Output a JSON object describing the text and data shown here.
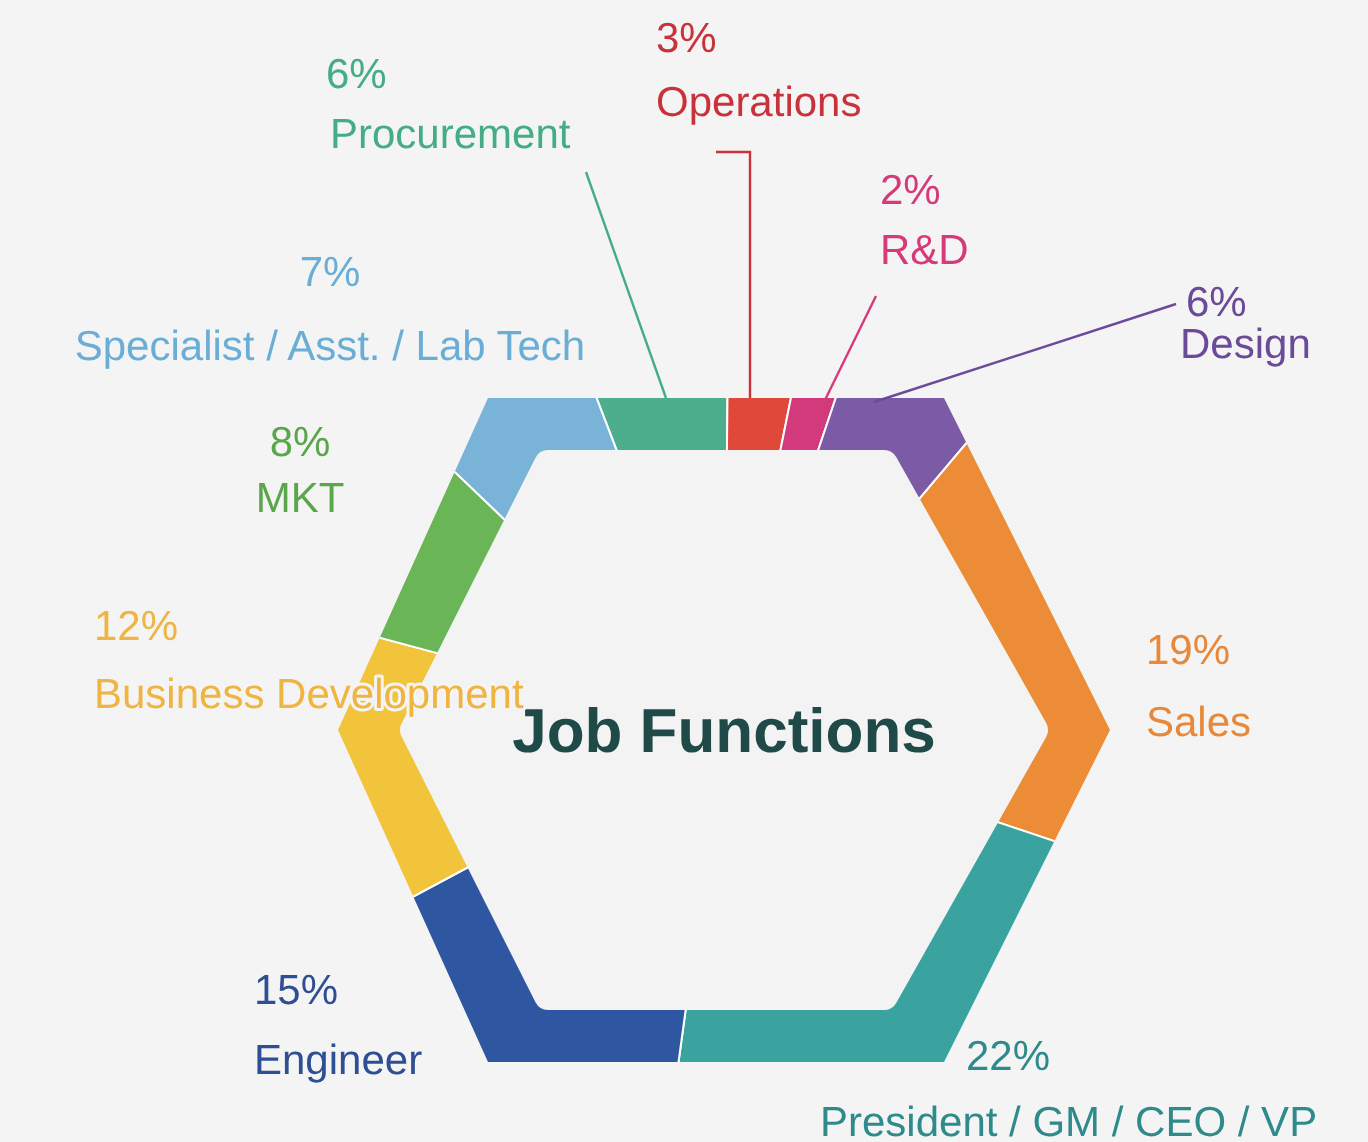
{
  "chart_data": {
    "type": "donut",
    "title": "Job Functions",
    "categories": [
      "Procurement",
      "Operations",
      "R&D",
      "Design",
      "Sales",
      "President / GM / CEO / VP",
      "Engineer",
      "Business Development",
      "MKT",
      "Specialist / Asst. / Lab Tech"
    ],
    "values": [
      6,
      3,
      2,
      6,
      19,
      22,
      15,
      12,
      8,
      7
    ],
    "value_labels": [
      "6%",
      "3%",
      "2%",
      "6%",
      "19%",
      "22%",
      "15%",
      "12%",
      "8%",
      "7%"
    ],
    "colors": [
      "#4cae8c",
      "#e0483a",
      "#d23a7c",
      "#7b5aa6",
      "#ec8c36",
      "#3aa3a0",
      "#2f56a0",
      "#f2c43c",
      "#6ab657",
      "#7ab3d8"
    ]
  }
}
